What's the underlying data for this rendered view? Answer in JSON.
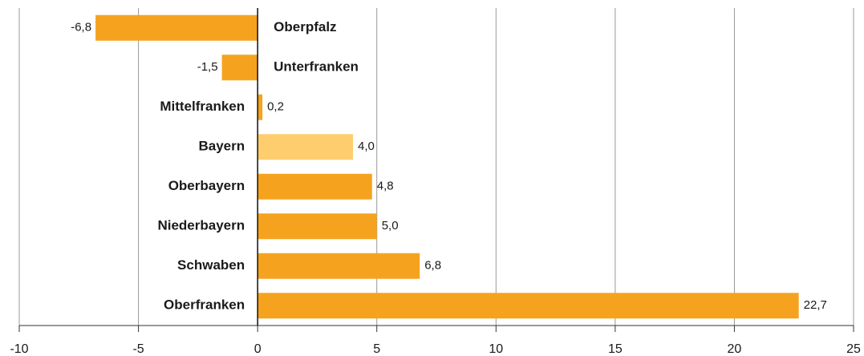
{
  "chart_data": {
    "type": "barh",
    "categories": [
      "Oberpfalz",
      "Unterfranken",
      "Mittelfranken",
      "Bayern",
      "Oberbayern",
      "Niederbayern",
      "Schwaben",
      "Oberfranken"
    ],
    "values": [
      -6.8,
      -1.5,
      0.2,
      4.0,
      4.8,
      5.0,
      6.8,
      22.7
    ],
    "value_labels": [
      "-6,8",
      "-1,5",
      "0,2",
      "4,0",
      "4,8",
      "5,0",
      "6,8",
      "22,7"
    ],
    "colors": [
      "#f5a31f",
      "#f5a31f",
      "#f5a31f",
      "#fdcd6e",
      "#f5a31f",
      "#f5a31f",
      "#f5a31f",
      "#f5a31f"
    ],
    "xlim": [
      -10,
      25
    ],
    "xticks": [
      -10,
      -5,
      0,
      5,
      10,
      15,
      20,
      25
    ],
    "grid": true
  }
}
